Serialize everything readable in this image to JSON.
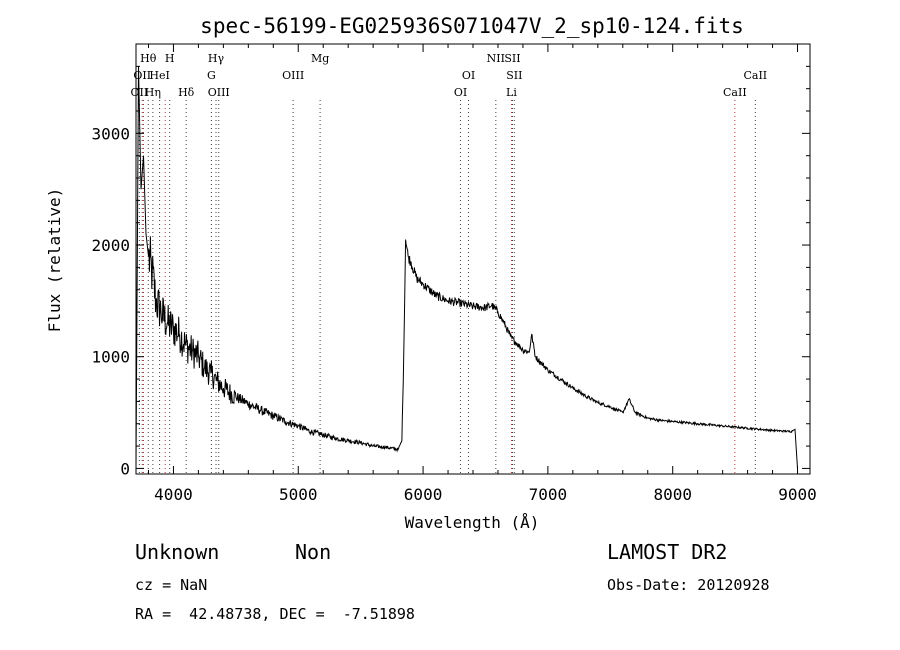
{
  "chart_data": {
    "type": "line",
    "title": "spec-56199-EG025936S071047V_2_sp10-124.fits",
    "xlabel": "Wavelength (Å)",
    "ylabel": "Flux (relative)",
    "xlim": [
      3700,
      9100
    ],
    "ylim": [
      -50,
      3800
    ],
    "xticks": [
      4000,
      5000,
      6000,
      7000,
      8000,
      9000
    ],
    "yticks": [
      0,
      1000,
      2000,
      3000
    ],
    "grid": false,
    "series": [
      {
        "x": [
          3700,
          3720,
          3740,
          3760,
          3780,
          3800,
          3830,
          3860,
          3900,
          3950,
          4000,
          4050,
          4100,
          4150,
          4200,
          4250,
          4300,
          4350,
          4400,
          4500,
          4600,
          4700,
          4800,
          4900,
          5000,
          5100,
          5200,
          5300,
          5400,
          5500,
          5600,
          5700,
          5800,
          5830,
          5845,
          5860,
          5880,
          5900,
          5950,
          6000,
          6050,
          6100,
          6200,
          6300,
          6400,
          6500,
          6550,
          6600,
          6650,
          6700,
          6750,
          6800,
          6850,
          6870,
          6900,
          7000,
          7100,
          7200,
          7300,
          7400,
          7500,
          7600,
          7650,
          7700,
          7800,
          7900,
          8000,
          8200,
          8400,
          8600,
          8800,
          8950,
          8980,
          9000
        ],
        "y": [
          20,
          3600,
          2500,
          2800,
          2100,
          1900,
          1750,
          1500,
          1400,
          1300,
          1250,
          1200,
          1100,
          1050,
          1000,
          900,
          850,
          780,
          720,
          640,
          580,
          520,
          470,
          420,
          380,
          330,
          300,
          270,
          250,
          230,
          200,
          190,
          170,
          250,
          1000,
          2050,
          1900,
          1850,
          1700,
          1650,
          1600,
          1550,
          1500,
          1480,
          1450,
          1440,
          1460,
          1400,
          1300,
          1180,
          1120,
          1060,
          1040,
          1200,
          1000,
          880,
          800,
          720,
          650,
          590,
          550,
          500,
          620,
          500,
          450,
          430,
          420,
          400,
          380,
          360,
          340,
          330,
          350,
          0
        ]
      }
    ],
    "line_groups": [
      {
        "color": "#404040",
        "lines": [
          {
            "x": 3727,
            "label": "OII",
            "row": 2
          },
          {
            "x": 3750,
            "label": "OII",
            "row": 1
          },
          {
            "x": 3798,
            "label": "Hθ",
            "row": 0
          },
          {
            "x": 3835,
            "label": "Hη",
            "row": 2
          },
          {
            "x": 3889,
            "label": "HeI",
            "row": 1
          },
          {
            "x": 3970,
            "label": "H",
            "row": 0
          },
          {
            "x": 4102,
            "label": "Hδ",
            "row": 2
          },
          {
            "x": 4304,
            "label": "G",
            "row": 1
          },
          {
            "x": 4341,
            "label": "Hγ",
            "row": 0
          },
          {
            "x": 4363,
            "label": "OIII",
            "row": 2
          },
          {
            "x": 4959,
            "label": "OIII",
            "row": 1
          },
          {
            "x": 5175,
            "label": "Mg",
            "row": 0
          },
          {
            "x": 6300,
            "label": "OI",
            "row": 2
          },
          {
            "x": 6364,
            "label": "OI",
            "row": 1
          },
          {
            "x": 6583,
            "label": "NII",
            "row": 0
          },
          {
            "x": 6716,
            "label": "SII",
            "row": 0
          },
          {
            "x": 6731,
            "label": "SII",
            "row": 1
          },
          {
            "x": 8662,
            "label": "CaII",
            "row": 1
          }
        ]
      },
      {
        "color": "#c03030",
        "lines": [
          {
            "x": 3760,
            "label": "",
            "row": 0
          },
          {
            "x": 3934,
            "label": "",
            "row": 0
          },
          {
            "x": 6708,
            "label": "Li",
            "row": 2
          },
          {
            "x": 8498,
            "label": "CaII",
            "row": 2
          }
        ]
      }
    ]
  },
  "info": {
    "class_label": "Unknown",
    "subclass_label": "Non",
    "survey_label": "LAMOST DR2",
    "cz_text": "cz = NaN",
    "obs_date_text": "Obs-Date: 20120928",
    "coords_text": "RA =  42.48738, DEC =  -7.51898"
  }
}
